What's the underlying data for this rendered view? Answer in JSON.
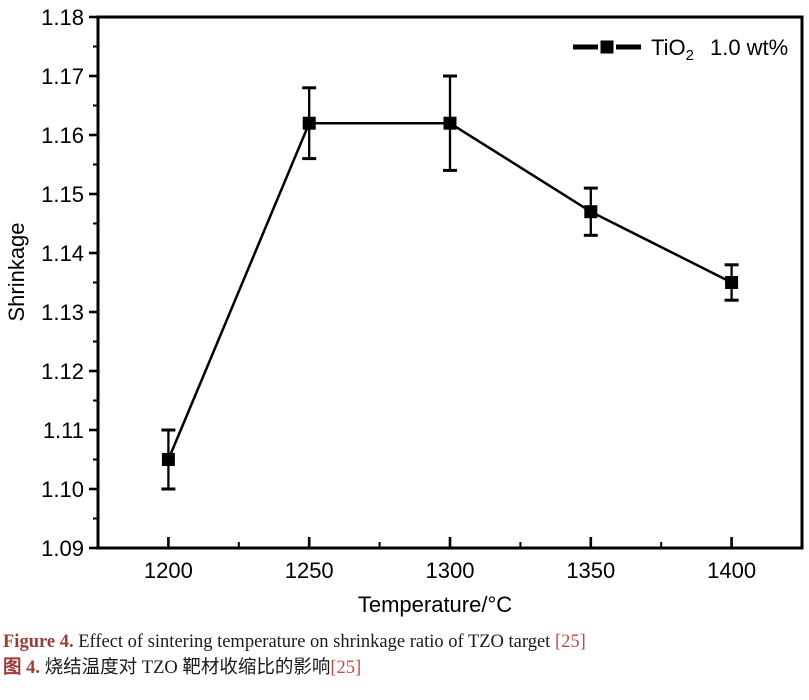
{
  "chart_data": {
    "type": "line",
    "title": "",
    "xlabel": "Temperature/°C",
    "ylabel": "Shrinkage",
    "x": [
      1200,
      1250,
      1300,
      1350,
      1400
    ],
    "series": [
      {
        "name": "TiO2 1.0 wt%",
        "values": [
          1.105,
          1.162,
          1.162,
          1.147,
          1.135
        ],
        "yerr": [
          0.005,
          0.006,
          0.008,
          0.004,
          0.003
        ],
        "color": "#000000",
        "marker": "filled-square"
      }
    ],
    "xlim": [
      1175,
      1425
    ],
    "ylim": [
      1.09,
      1.18
    ],
    "x_tick_values": [
      1200,
      1250,
      1300,
      1350,
      1400
    ],
    "x_tick_labels": [
      "1200",
      "1250",
      "1300",
      "1350",
      "1400"
    ],
    "x_minor_step": 25,
    "y_tick_values": [
      1.09,
      1.1,
      1.11,
      1.12,
      1.13,
      1.14,
      1.15,
      1.16,
      1.17,
      1.18
    ],
    "y_tick_labels": [
      "1.09",
      "1.10",
      "1.11",
      "1.12",
      "1.13",
      "1.14",
      "1.15",
      "1.16",
      "1.17",
      "1.18"
    ],
    "y_minor_step": 0.005,
    "grid": false,
    "legend": {
      "position": "top-right",
      "entries": [
        {
          "label_main": "TiO",
          "label_sub": "2",
          "label_rest": "1.0 wt%"
        }
      ]
    }
  },
  "caption": {
    "en": {
      "label": "Figure 4.",
      "text": "Effect of sintering temperature on shrinkage ratio of TZO target",
      "citation": "[25]"
    },
    "zh": {
      "label": "图 4.",
      "text": "烧结温度对 TZO 靶材收缩比的影响",
      "citation": "[25]"
    }
  },
  "colors": {
    "axis": "#000000",
    "background": "#ffffff",
    "caption_label": "#9B3C3A",
    "citation": "#BC4B47"
  }
}
